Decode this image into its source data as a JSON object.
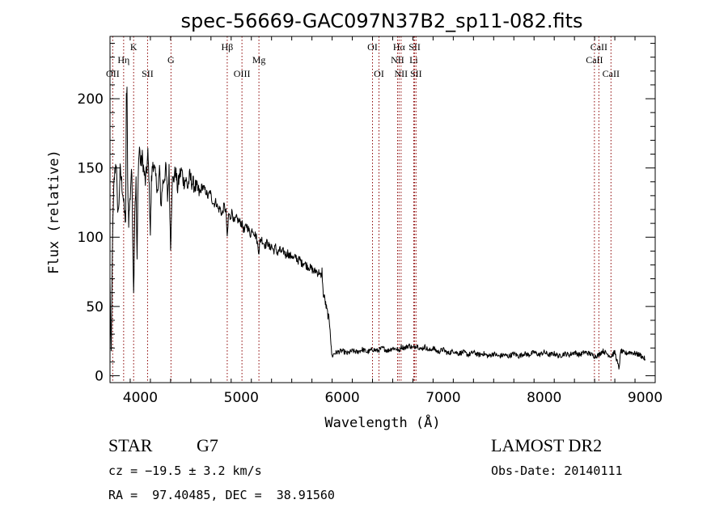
{
  "chart_data": {
    "type": "line",
    "title": "spec-56669-GAC097N37B2_sp11-082.fits",
    "xlabel": "Wavelength (Å)",
    "ylabel": "Flux (relative)",
    "xlim": [
      3700,
      9100
    ],
    "ylim": [
      -5,
      245
    ],
    "xticks": [
      4000,
      5000,
      6000,
      7000,
      8000,
      9000
    ],
    "yticks": [
      0,
      50,
      100,
      150,
      200
    ],
    "grid": false,
    "spectrum": [
      [
        3700,
        68
      ],
      [
        3712,
        12
      ],
      [
        3725,
        100
      ],
      [
        3740,
        140
      ],
      [
        3752,
        150
      ],
      [
        3762,
        155
      ],
      [
        3772,
        125
      ],
      [
        3785,
        118
      ],
      [
        3800,
        148
      ],
      [
        3815,
        140
      ],
      [
        3830,
        130
      ],
      [
        3842,
        118
      ],
      [
        3855,
        112
      ],
      [
        3862,
        200
      ],
      [
        3868,
        208
      ],
      [
        3875,
        140
      ],
      [
        3885,
        112
      ],
      [
        3900,
        130
      ],
      [
        3912,
        150
      ],
      [
        3920,
        130
      ],
      [
        3934,
        58
      ],
      [
        3945,
        120
      ],
      [
        3958,
        140
      ],
      [
        3968,
        80
      ],
      [
        3980,
        150
      ],
      [
        3992,
        165
      ],
      [
        4005,
        152
      ],
      [
        4020,
        158
      ],
      [
        4035,
        148
      ],
      [
        4050,
        140
      ],
      [
        4065,
        150
      ],
      [
        4075,
        160
      ],
      [
        4085,
        145
      ],
      [
        4100,
        102
      ],
      [
        4110,
        140
      ],
      [
        4125,
        155
      ],
      [
        4140,
        148
      ],
      [
        4160,
        140
      ],
      [
        4175,
        132
      ],
      [
        4190,
        150
      ],
      [
        4205,
        122
      ],
      [
        4220,
        138
      ],
      [
        4240,
        144
      ],
      [
        4255,
        150
      ],
      [
        4270,
        128
      ],
      [
        4285,
        148
      ],
      [
        4300,
        92
      ],
      [
        4315,
        140
      ],
      [
        4330,
        142
      ],
      [
        4350,
        148
      ],
      [
        4370,
        135
      ],
      [
        4390,
        145
      ],
      [
        4410,
        148
      ],
      [
        4430,
        140
      ],
      [
        4450,
        142
      ],
      [
        4470,
        136
      ],
      [
        4490,
        144
      ],
      [
        4510,
        140
      ],
      [
        4530,
        138
      ],
      [
        4550,
        136
      ],
      [
        4570,
        134
      ],
      [
        4590,
        131
      ],
      [
        4610,
        137
      ],
      [
        4630,
        135
      ],
      [
        4650,
        133
      ],
      [
        4670,
        129
      ],
      [
        4690,
        133
      ],
      [
        4710,
        127
      ],
      [
        4730,
        124
      ],
      [
        4750,
        126
      ],
      [
        4770,
        120
      ],
      [
        4790,
        121
      ],
      [
        4810,
        116
      ],
      [
        4830,
        123
      ],
      [
        4850,
        118
      ],
      [
        4861,
        98
      ],
      [
        4875,
        117
      ],
      [
        4890,
        114
      ],
      [
        4910,
        119
      ],
      [
        4930,
        110
      ],
      [
        4950,
        114
      ],
      [
        4970,
        112
      ],
      [
        4990,
        111
      ],
      [
        5010,
        109
      ],
      [
        5030,
        104
      ],
      [
        5050,
        109
      ],
      [
        5070,
        106
      ],
      [
        5090,
        102
      ],
      [
        5110,
        106
      ],
      [
        5130,
        103
      ],
      [
        5150,
        100
      ],
      [
        5167,
        92
      ],
      [
        5175,
        90
      ],
      [
        5185,
        97
      ],
      [
        5200,
        99
      ],
      [
        5220,
        96
      ],
      [
        5240,
        94
      ],
      [
        5260,
        97
      ],
      [
        5280,
        92
      ],
      [
        5300,
        94
      ],
      [
        5320,
        90
      ],
      [
        5340,
        93
      ],
      [
        5360,
        88
      ],
      [
        5380,
        91
      ],
      [
        5400,
        89
      ],
      [
        5420,
        90
      ],
      [
        5440,
        87
      ],
      [
        5460,
        89
      ],
      [
        5480,
        86
      ],
      [
        5500,
        87
      ],
      [
        5520,
        84
      ],
      [
        5540,
        86
      ],
      [
        5560,
        83
      ],
      [
        5580,
        84
      ],
      [
        5600,
        81
      ],
      [
        5620,
        82
      ],
      [
        5640,
        80
      ],
      [
        5660,
        79
      ],
      [
        5680,
        78
      ],
      [
        5700,
        77
      ],
      [
        5720,
        75
      ],
      [
        5740,
        76
      ],
      [
        5760,
        74
      ],
      [
        5775,
        75
      ],
      [
        5790,
        70
      ],
      [
        5800,
        76
      ],
      [
        5810,
        60
      ],
      [
        5825,
        56
      ],
      [
        5840,
        50
      ],
      [
        5855,
        45
      ],
      [
        5870,
        40
      ],
      [
        5880,
        35
      ],
      [
        5892,
        18
      ],
      [
        5900,
        14
      ],
      [
        5920,
        16
      ],
      [
        5950,
        17
      ],
      [
        6000,
        18
      ],
      [
        6050,
        16
      ],
      [
        6100,
        18
      ],
      [
        6150,
        17
      ],
      [
        6200,
        19
      ],
      [
        6250,
        17
      ],
      [
        6300,
        19
      ],
      [
        6350,
        18
      ],
      [
        6400,
        20
      ],
      [
        6450,
        18
      ],
      [
        6500,
        20
      ],
      [
        6550,
        19
      ],
      [
        6563,
        17
      ],
      [
        6580,
        21
      ],
      [
        6620,
        20
      ],
      [
        6660,
        22
      ],
      [
        6700,
        20
      ],
      [
        6740,
        22
      ],
      [
        6780,
        19
      ],
      [
        6820,
        21
      ],
      [
        6860,
        18
      ],
      [
        6900,
        20
      ],
      [
        6950,
        17
      ],
      [
        7000,
        19
      ],
      [
        7050,
        16
      ],
      [
        7100,
        18
      ],
      [
        7150,
        16
      ],
      [
        7200,
        17
      ],
      [
        7250,
        15
      ],
      [
        7300,
        17
      ],
      [
        7350,
        15
      ],
      [
        7400,
        16
      ],
      [
        7450,
        14
      ],
      [
        7500,
        16
      ],
      [
        7550,
        14
      ],
      [
        7600,
        15
      ],
      [
        7650,
        14
      ],
      [
        7700,
        16
      ],
      [
        7750,
        14
      ],
      [
        7800,
        16
      ],
      [
        7850,
        15
      ],
      [
        7900,
        17
      ],
      [
        7950,
        15
      ],
      [
        8000,
        17
      ],
      [
        8050,
        15
      ],
      [
        8100,
        16
      ],
      [
        8150,
        14
      ],
      [
        8200,
        16
      ],
      [
        8250,
        15
      ],
      [
        8300,
        17
      ],
      [
        8350,
        15
      ],
      [
        8400,
        17
      ],
      [
        8450,
        16
      ],
      [
        8500,
        14
      ],
      [
        8540,
        15
      ],
      [
        8580,
        18
      ],
      [
        8620,
        16
      ],
      [
        8662,
        14
      ],
      [
        8700,
        17
      ],
      [
        8740,
        5
      ],
      [
        8760,
        18
      ],
      [
        8800,
        16
      ],
      [
        8850,
        17
      ],
      [
        8900,
        16
      ],
      [
        8950,
        15
      ],
      [
        9000,
        12
      ]
    ],
    "lines": [
      {
        "label": "OII",
        "wl": 3727,
        "row": 3
      },
      {
        "label": "Hη",
        "wl": 3835,
        "row": 2
      },
      {
        "label": "K",
        "wl": 3934,
        "row": 1
      },
      {
        "label": "SII",
        "wl": 4072,
        "row": 3
      },
      {
        "label": "G",
        "wl": 4304,
        "row": 2
      },
      {
        "label": "Hβ",
        "wl": 4861,
        "row": 1
      },
      {
        "label": "OIII",
        "wl": 5007,
        "row": 3
      },
      {
        "label": "Mg",
        "wl": 5175,
        "row": 2
      },
      {
        "label": "OI",
        "wl": 6300,
        "row": 1
      },
      {
        "label": "OI",
        "wl": 6364,
        "row": 3
      },
      {
        "label": "Hα",
        "wl": 6563,
        "row": 1
      },
      {
        "label": "NII",
        "wl": 6548,
        "row": 2
      },
      {
        "label": "NII",
        "wl": 6583,
        "row": 3
      },
      {
        "label": "SII",
        "wl": 6717,
        "row": 1
      },
      {
        "label": "Li",
        "wl": 6708,
        "row": 2
      },
      {
        "label": "SII",
        "wl": 6731,
        "row": 3
      },
      {
        "label": "CaII",
        "wl": 8498,
        "row": 2
      },
      {
        "label": "CaII",
        "wl": 8542,
        "row": 1
      },
      {
        "label": "CaII",
        "wl": 8662,
        "row": 3
      }
    ],
    "line_color": "#8b0000"
  },
  "footer": {
    "class": "STAR",
    "subclass": "G7",
    "survey": "LAMOST DR2",
    "cz": "cz = −19.5 ± 3.2 km/s",
    "obs_date": "Obs-Date: 20140111",
    "coords": "RA =  97.40485, DEC =  38.91560"
  }
}
